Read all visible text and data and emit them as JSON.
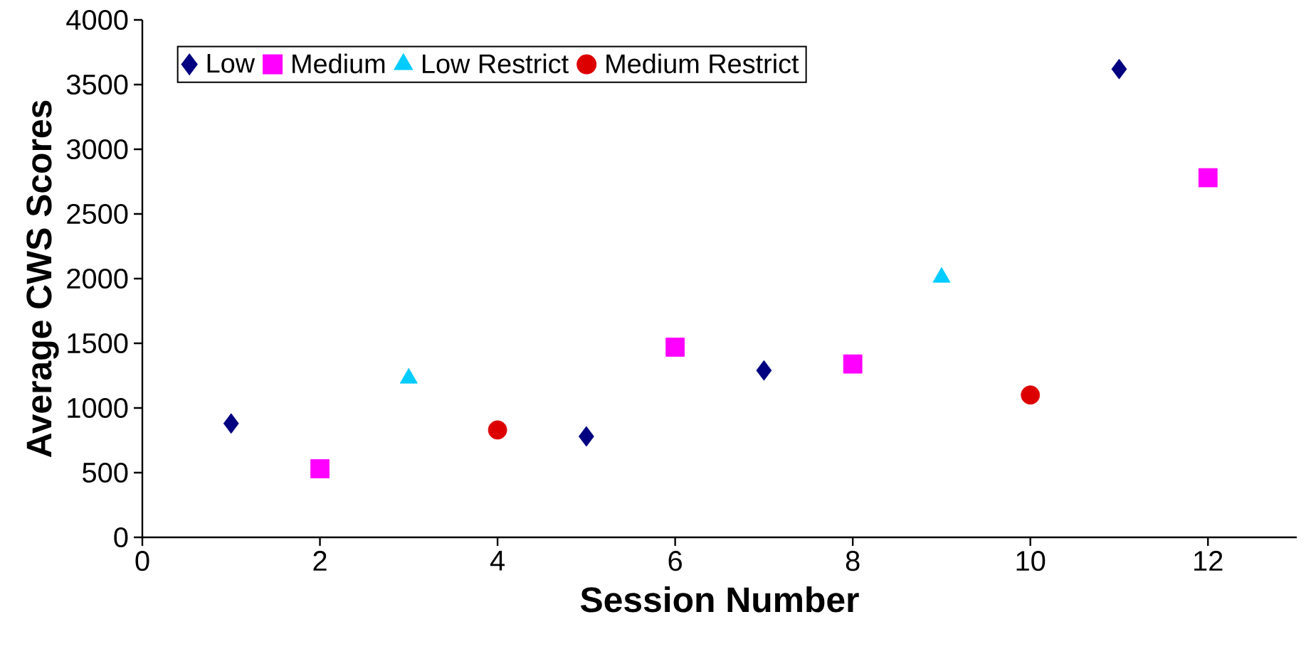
{
  "chart_data": {
    "type": "scatter",
    "xlabel": "Session Number",
    "ylabel": "Average CWS Scores",
    "xlim": [
      0,
      13
    ],
    "xticks": [
      0,
      2,
      4,
      6,
      8,
      10,
      12
    ],
    "ylim": [
      0,
      4000
    ],
    "yticks": [
      0,
      500,
      1000,
      1500,
      2000,
      2500,
      3000,
      3500,
      4000
    ],
    "grid": false,
    "legend": "top left",
    "series": [
      {
        "name": "Low",
        "color": "#000080",
        "marker": "diamond",
        "x": [
          1,
          5,
          7,
          11
        ],
        "values": [
          880,
          780,
          1290,
          3620
        ]
      },
      {
        "name": "Medium",
        "color": "#ff00ff",
        "marker": "square",
        "x": [
          2,
          6,
          8,
          12
        ],
        "values": [
          530,
          1470,
          1340,
          2780
        ]
      },
      {
        "name": "Low Restrict",
        "color": "#00ccff",
        "marker": "triangle",
        "x": [
          3,
          9
        ],
        "values": [
          1230,
          2010
        ]
      },
      {
        "name": "Medium Restrict",
        "color": "#dd0000",
        "marker": "circle",
        "x": [
          4,
          10
        ],
        "values": [
          830,
          1100
        ]
      }
    ]
  }
}
